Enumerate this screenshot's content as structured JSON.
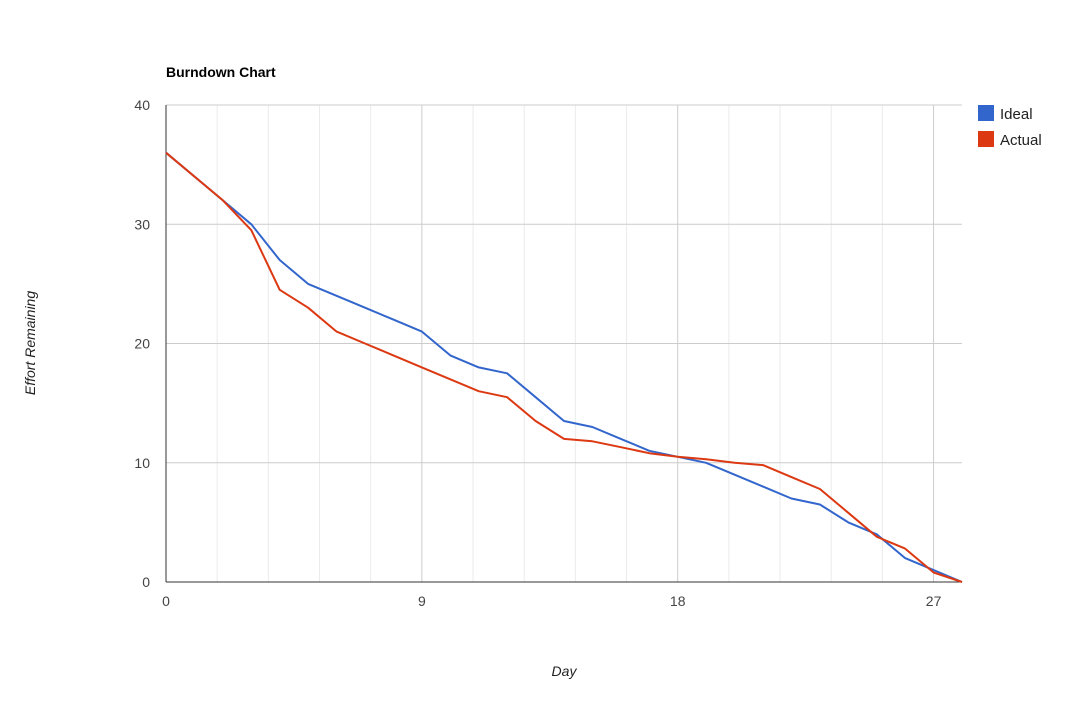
{
  "chart_data": {
    "type": "line",
    "title": "Burndown Chart",
    "xlabel": "Day",
    "ylabel": "Effort Remaining",
    "xlim": [
      0,
      28
    ],
    "ylim": [
      0,
      40
    ],
    "x_ticks": [
      0,
      9,
      18,
      27
    ],
    "y_ticks": [
      0,
      10,
      20,
      30,
      40
    ],
    "x_minor_step": 1.8,
    "grid": true,
    "legend_position": "right",
    "series": [
      {
        "name": "Ideal",
        "color": "#3366cc",
        "points": [
          [
            0,
            36
          ],
          [
            2,
            32
          ],
          [
            3,
            30
          ],
          [
            4,
            27
          ],
          [
            5,
            25
          ],
          [
            6,
            24
          ],
          [
            7,
            23
          ],
          [
            8,
            22
          ],
          [
            9,
            21
          ],
          [
            10,
            19
          ],
          [
            11,
            18
          ],
          [
            12,
            17.5
          ],
          [
            13,
            15.5
          ],
          [
            14,
            13.5
          ],
          [
            15,
            13
          ],
          [
            16,
            12
          ],
          [
            17,
            11
          ],
          [
            18,
            10.5
          ],
          [
            19,
            10
          ],
          [
            20,
            9
          ],
          [
            21,
            8
          ],
          [
            22,
            7
          ],
          [
            23,
            6.5
          ],
          [
            24,
            5
          ],
          [
            25,
            4
          ],
          [
            26,
            2
          ],
          [
            27,
            1
          ],
          [
            28,
            0
          ]
        ]
      },
      {
        "name": "Actual",
        "color": "#dc3912",
        "points": [
          [
            0,
            36
          ],
          [
            2,
            32
          ],
          [
            3,
            29.5
          ],
          [
            4,
            24.5
          ],
          [
            5,
            23
          ],
          [
            6,
            21
          ],
          [
            7,
            20
          ],
          [
            8,
            19
          ],
          [
            9,
            18
          ],
          [
            10,
            17
          ],
          [
            11,
            16
          ],
          [
            12,
            15.5
          ],
          [
            13,
            13.5
          ],
          [
            14,
            12
          ],
          [
            15,
            11.8
          ],
          [
            16,
            11.3
          ],
          [
            17,
            10.8
          ],
          [
            18,
            10.5
          ],
          [
            19,
            10.3
          ],
          [
            20,
            10
          ],
          [
            21,
            9.8
          ],
          [
            22,
            8.8
          ],
          [
            23,
            7.8
          ],
          [
            24,
            5.8
          ],
          [
            25,
            3.8
          ],
          [
            26,
            2.8
          ],
          [
            27,
            0.8
          ],
          [
            28,
            0
          ]
        ]
      }
    ]
  }
}
